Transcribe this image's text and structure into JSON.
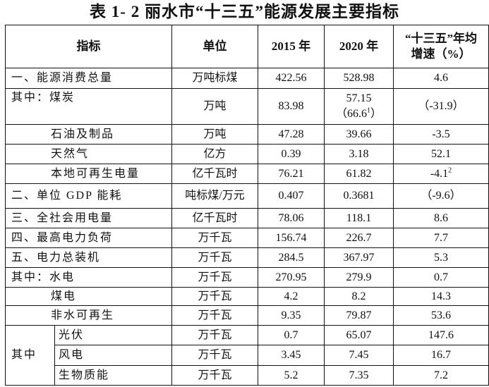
{
  "title": "表 1- 2  丽水市“十三五”能源发展主要指标",
  "headers": {
    "indicator": "指标",
    "unit": "单位",
    "y2015": "2015 年",
    "y2020": "2020 年",
    "growth_line1": "“十三五”年均",
    "growth_line2": "增速（%）"
  },
  "rows": [
    {
      "name": "一、能源消费总量",
      "unit": "万吨标煤",
      "v2015": "422.56",
      "v2020": "528.98",
      "growth": "4.6"
    },
    {
      "name": "其中：煤炭",
      "unit": "万吨",
      "v2015": "83.98",
      "v2020": "57.15",
      "v2020_note": "（66.6",
      "v2020_note_sup": "1",
      "v2020_note_close": "）",
      "growth": "（-31.9）"
    },
    {
      "name": "石油及制品",
      "indent": true,
      "unit": "万吨",
      "v2015": "47.28",
      "v2020": "39.66",
      "growth": "-3.5"
    },
    {
      "name": "天然气",
      "indent": true,
      "unit": "亿方",
      "v2015": "0.39",
      "v2020": "3.18",
      "growth": "52.1"
    },
    {
      "name": "本地可再生电量",
      "indent": true,
      "unit": "亿千瓦时",
      "v2015": "76.21",
      "v2020": "61.82",
      "growth": "-4.1",
      "growth_sup": "2"
    },
    {
      "name": "二、单位 GDP 能耗",
      "unit": "吨标煤/万元",
      "v2015": "0.407",
      "v2020": "0.3681",
      "growth": "（-9.6）"
    },
    {
      "name": "三、全社会用电量",
      "unit": "亿千瓦时",
      "v2015": "78.06",
      "v2020": "118.1",
      "growth": "8.6"
    },
    {
      "name": "四、最高电力负荷",
      "unit": "万千瓦",
      "v2015": "156.74",
      "v2020": "226.7",
      "growth": "7.7"
    },
    {
      "name": "五、电力总装机",
      "unit": "万千瓦",
      "v2015": "284.5",
      "v2020": "367.97",
      "growth": "5.3"
    },
    {
      "name": "其中：水电",
      "unit": "万千瓦",
      "v2015": "270.95",
      "v2020": "279.9",
      "growth": "0.7"
    },
    {
      "name": "煤电",
      "indent": true,
      "unit": "万千瓦",
      "v2015": "4.2",
      "v2020": "8.2",
      "growth": "14.3"
    },
    {
      "name": "非水可再生",
      "indent": true,
      "unit": "万千瓦",
      "v2015": "9.35",
      "v2020": "79.87",
      "growth": "53.6"
    }
  ],
  "sub_group": {
    "label": "其中",
    "rows": [
      {
        "name": "光伏",
        "unit": "万千瓦",
        "v2015": "0.7",
        "v2020": "65.07",
        "growth": "147.6"
      },
      {
        "name": "风电",
        "unit": "万千瓦",
        "v2015": "3.45",
        "v2020": "7.45",
        "growth": "16.7"
      },
      {
        "name": "生物质能",
        "unit": "万千瓦",
        "v2015": "5.2",
        "v2020": "7.35",
        "growth": "7.2"
      }
    ]
  }
}
